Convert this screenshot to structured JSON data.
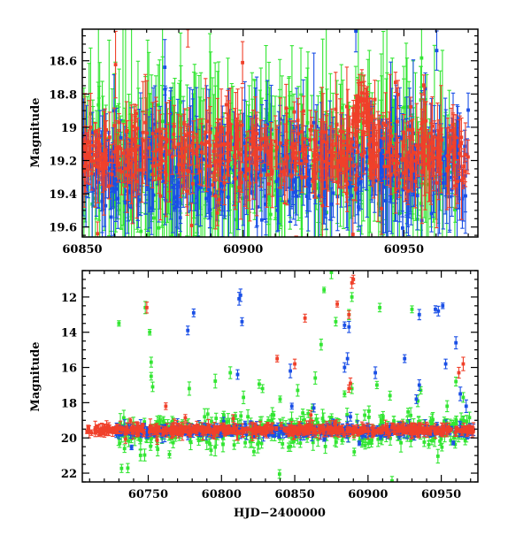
{
  "colors": {
    "green": "#33e633",
    "blue": "#1a4fe6",
    "red": "#f0402a",
    "axis": "#000000"
  },
  "chart_data": [
    {
      "type": "scatter",
      "panel": "top",
      "title": "",
      "xlabel": "",
      "ylabel": "Magnitude",
      "xlim": [
        60850,
        60973
      ],
      "ylim": [
        19.66,
        18.41
      ],
      "y_inverted": true,
      "xticks": [
        60850,
        60900,
        60950
      ],
      "xtick_labels": [
        "60850",
        "60900",
        "60950"
      ],
      "yticks": [
        18.6,
        18.8,
        19,
        19.2,
        19.4,
        19.6
      ],
      "ytick_labels": [
        "18.6",
        "18.8",
        "19",
        "19.2",
        "19.4",
        "19.6"
      ],
      "series": [
        {
          "name": "green",
          "color": "#33e633",
          "baseline": 19.2,
          "spread": 0.25,
          "err_range": [
            0.15,
            0.8
          ],
          "count": 420,
          "x_range": [
            60850,
            60966
          ],
          "highlights": []
        },
        {
          "name": "blue",
          "color": "#1a4fe6",
          "baseline": 19.25,
          "spread": 0.25,
          "err_range": [
            0.08,
            0.5
          ],
          "count": 460,
          "x_range": [
            60850,
            60970
          ],
          "highlights": []
        },
        {
          "name": "red",
          "color": "#f0402a",
          "baseline": 19.15,
          "spread": 0.2,
          "err_range": [
            0.05,
            0.35
          ],
          "count": 520,
          "x_range": [
            60850,
            60970
          ],
          "highlights": [
            {
              "x": 60937,
              "y": 18.82,
              "width": 4
            }
          ]
        }
      ]
    },
    {
      "type": "scatter",
      "panel": "bottom",
      "title": "",
      "xlabel": "HJD−2400000",
      "ylabel": "Magnitude",
      "xlim": [
        60705,
        60975
      ],
      "ylim": [
        22.5,
        10.5
      ],
      "y_inverted": true,
      "xticks": [
        60750,
        60800,
        60850,
        60900,
        60950
      ],
      "xtick_labels": [
        "60750",
        "60800",
        "60850",
        "60900",
        "60950"
      ],
      "yticks": [
        12,
        14,
        16,
        18,
        20,
        22
      ],
      "ytick_labels": [
        "12",
        "14",
        "16",
        "18",
        "20",
        "22"
      ],
      "series": [
        {
          "name": "green",
          "color": "#33e633",
          "baseline": 19.6,
          "spread": 0.9,
          "err_range": [
            0.2,
            0.6
          ],
          "count": 380,
          "x_range": [
            60728,
            60970
          ],
          "outliers": [
            [
              60730,
              13.5
            ],
            [
              60748,
              12.6
            ],
            [
              60751,
              14.0
            ],
            [
              60752,
              15.7
            ],
            [
              60752,
              16.5
            ],
            [
              60753,
              17.1
            ],
            [
              60778,
              17.2
            ],
            [
              60806,
              16.3
            ],
            [
              60815,
              17.7
            ],
            [
              60828,
              17.2
            ],
            [
              60840,
              17.8
            ],
            [
              60852,
              17.3
            ],
            [
              60864,
              16.6
            ],
            [
              60868,
              14.7
            ],
            [
              60870,
              11.6
            ],
            [
              60875,
              10.6
            ],
            [
              60878,
              13.4
            ],
            [
              60884,
              17.5
            ],
            [
              60887,
              13.0
            ],
            [
              60889,
              12.0
            ],
            [
              60889,
              17.2
            ],
            [
              60908,
              12.6
            ],
            [
              60915,
              17.6
            ],
            [
              60930,
              12.7
            ],
            [
              60934,
              17.9
            ],
            [
              60936,
              17.3
            ],
            [
              60954,
              18.2
            ],
            [
              60960,
              16.8
            ],
            [
              60965,
              17.7
            ]
          ]
        },
        {
          "name": "blue",
          "color": "#1a4fe6",
          "baseline": 19.6,
          "spread": 0.25,
          "err_range": [
            0.1,
            0.5
          ],
          "count": 420,
          "x_range": [
            60728,
            60972
          ],
          "outliers": [
            [
              60777,
              13.9
            ],
            [
              60781,
              12.9
            ],
            [
              60812,
              12.1
            ],
            [
              60813,
              11.9
            ],
            [
              60814,
              13.4
            ],
            [
              60811,
              16.4
            ],
            [
              60847,
              16.2
            ],
            [
              60848,
              18.2
            ],
            [
              60863,
              18.3
            ],
            [
              60884,
              13.6
            ],
            [
              60884,
              16.0
            ],
            [
              60886,
              15.5
            ],
            [
              60887,
              13.7
            ],
            [
              60905,
              16.3
            ],
            [
              60925,
              15.5
            ],
            [
              60933,
              17.8
            ],
            [
              60935,
              13.0
            ],
            [
              60935,
              17.0
            ],
            [
              60946,
              12.7
            ],
            [
              60948,
              12.8
            ],
            [
              60951,
              12.5
            ],
            [
              60953,
              15.8
            ],
            [
              60960,
              14.6
            ],
            [
              60963,
              17.5
            ],
            [
              60967,
              18.2
            ],
            [
              60888,
              18.8
            ],
            [
              60889,
              19.4
            ]
          ]
        },
        {
          "name": "red",
          "color": "#f0402a",
          "baseline": 19.55,
          "spread": 0.2,
          "err_range": [
            0.08,
            0.5
          ],
          "count": 540,
          "x_range": [
            60708,
            60972
          ],
          "outliers": [
            [
              60749,
              12.6
            ],
            [
              60762,
              18.2
            ],
            [
              60808,
              18.9
            ],
            [
              60838,
              15.5
            ],
            [
              60850,
              15.8
            ],
            [
              60857,
              13.2
            ],
            [
              60861,
              18.7
            ],
            [
              60879,
              12.4
            ],
            [
              60887,
              13.0
            ],
            [
              60889,
              11.2
            ],
            [
              60890,
              11.0
            ],
            [
              60887,
              17.2
            ],
            [
              60888,
              16.9
            ],
            [
              60962,
              16.3
            ],
            [
              60965,
              15.8
            ]
          ]
        }
      ]
    }
  ]
}
